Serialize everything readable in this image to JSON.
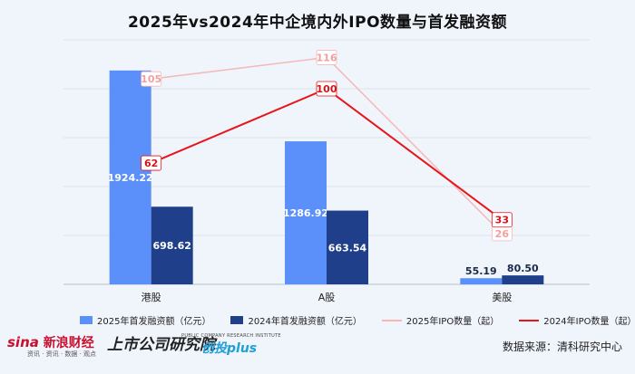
{
  "title": "2025年vs2024年中企境内外IPO数量与首发融资额",
  "chart_data": {
    "type": "bar+line",
    "categories": [
      "港股",
      "A股",
      "美股"
    ],
    "bar_axis": {
      "ylim": [
        0,
        2200
      ]
    },
    "line_axis": {
      "ylim": [
        0,
        125
      ]
    },
    "series": [
      {
        "name": "2025年首发融资额（亿元）",
        "kind": "bar",
        "color": "#5b8ff9",
        "values": [
          1924.22,
          1286.92,
          55.19
        ],
        "labels": [
          "1924.22",
          "1286.92",
          "55.19"
        ]
      },
      {
        "name": "2024年首发融资额（亿元）",
        "kind": "bar",
        "color": "#1f3f8a",
        "values": [
          698.62,
          663.54,
          80.5
        ],
        "labels": [
          "698.62",
          "663.54",
          "80.50"
        ]
      },
      {
        "name": "2025年IPO数量（起）",
        "kind": "line",
        "color": "#f4b8b8",
        "values": [
          105,
          116,
          26
        ],
        "labels": [
          "105",
          "116",
          "26"
        ]
      },
      {
        "name": "2024年IPO数量（起）",
        "kind": "line",
        "color": "#e8141a",
        "values": [
          62,
          100,
          33
        ],
        "labels": [
          "62",
          "100",
          "33"
        ]
      }
    ]
  },
  "footer": {
    "brand_sina": "sina",
    "brand_sina_name": "新浪财经",
    "brand_sina_sub": "资讯 · 资讯 · 数据 · 观点",
    "brand_gs": "上市公司研究院",
    "brand_gs_sub": "PUBLIC COMPANY RESEARCH INSTITUTE",
    "brand_ct": "创投plus",
    "source": "数据来源：清科研究中心"
  }
}
